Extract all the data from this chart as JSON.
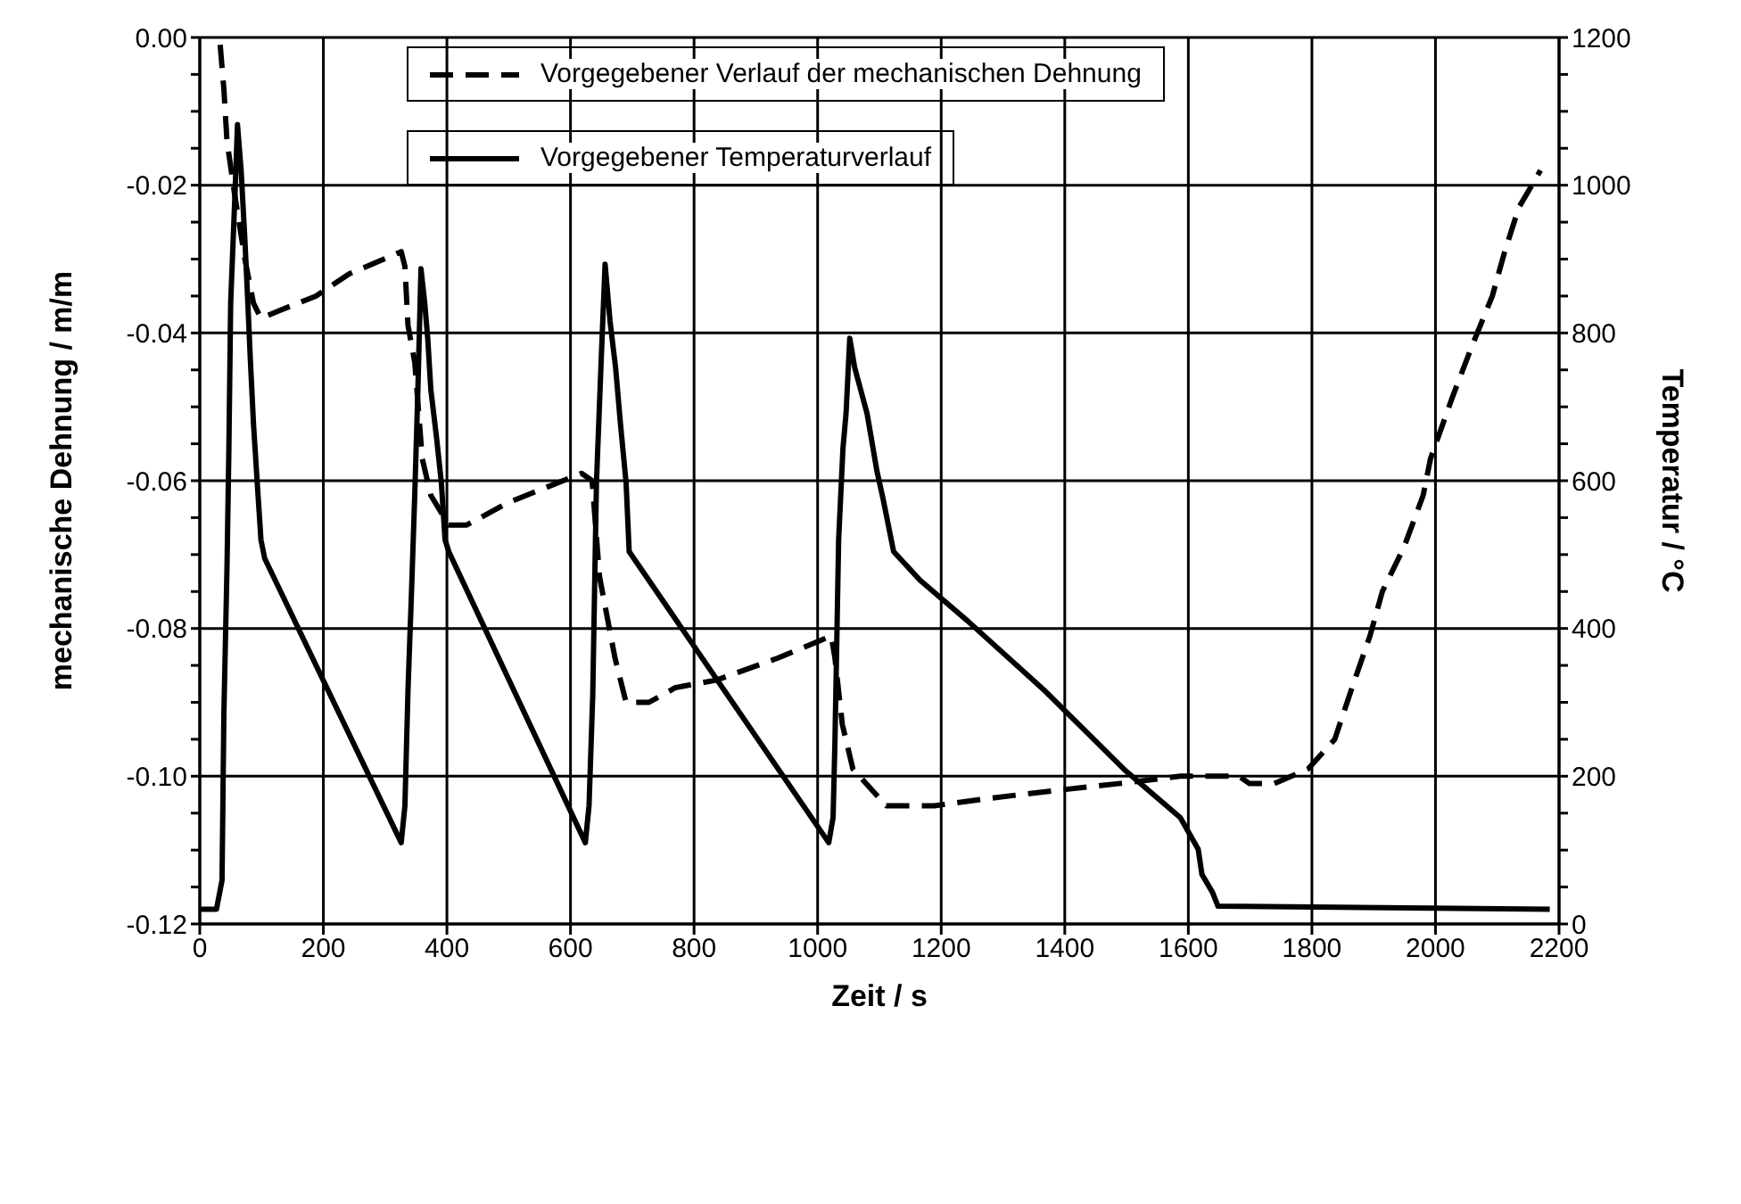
{
  "chart_data": {
    "type": "line",
    "xlabel": "Zeit  /  s",
    "ylabel": "mechanische Dehnung  /  m/m",
    "y2label": "Temperatur  /  °C",
    "xlim": [
      0,
      2200
    ],
    "xticks": [
      0,
      200,
      400,
      600,
      800,
      1000,
      1200,
      1400,
      1600,
      1800,
      2000,
      2200
    ],
    "ylim": [
      -0.12,
      0
    ],
    "yticks": [
      {
        "value": -0.12,
        "label": "-0.12"
      },
      {
        "value": -0.115,
        "label": null
      },
      {
        "value": -0.11,
        "label": null
      },
      {
        "value": -0.105,
        "label": null
      },
      {
        "value": -0.1,
        "label": "-0.10"
      },
      {
        "value": -0.095,
        "label": null
      },
      {
        "value": -0.09,
        "label": null
      },
      {
        "value": -0.085,
        "label": null
      },
      {
        "value": -0.08,
        "label": "-0.08"
      },
      {
        "value": -0.075,
        "label": null
      },
      {
        "value": -0.07,
        "label": null
      },
      {
        "value": -0.065,
        "label": null
      },
      {
        "value": -0.06,
        "label": "-0.06"
      },
      {
        "value": -0.055,
        "label": null
      },
      {
        "value": -0.05,
        "label": null
      },
      {
        "value": -0.045,
        "label": null
      },
      {
        "value": -0.04,
        "label": "-0.04"
      },
      {
        "value": -0.035,
        "label": null
      },
      {
        "value": -0.03,
        "label": null
      },
      {
        "value": -0.025,
        "label": null
      },
      {
        "value": -0.02,
        "label": "-0.02"
      },
      {
        "value": -0.015,
        "label": null
      },
      {
        "value": -0.01,
        "label": null
      },
      {
        "value": -0.005,
        "label": null
      },
      {
        "value": 0,
        "label": "0.00"
      }
    ],
    "y2lim": [
      0,
      1200
    ],
    "y2ticks": [
      0,
      {
        "value": 50,
        "label": null
      },
      {
        "value": 100,
        "label": null
      },
      {
        "value": 150,
        "label": null
      },
      200,
      {
        "value": 250,
        "label": null
      },
      {
        "value": 300,
        "label": null
      },
      {
        "value": 350,
        "label": null
      },
      400,
      {
        "value": 450,
        "label": null
      },
      {
        "value": 500,
        "label": null
      },
      {
        "value": 550,
        "label": null
      },
      600,
      {
        "value": 650,
        "label": null
      },
      {
        "value": 700,
        "label": null
      },
      {
        "value": 750,
        "label": null
      },
      800,
      {
        "value": 850,
        "label": null
      },
      {
        "value": 900,
        "label": null
      },
      {
        "value": 950,
        "label": null
      },
      1000,
      {
        "value": 1050,
        "label": null
      },
      {
        "value": 1100,
        "label": null
      },
      {
        "value": 1150,
        "label": null
      },
      1200
    ],
    "grid": true,
    "legend": "top",
    "marker": "none",
    "series": [
      {
        "name": "Vorgegebener Verlauf der mechanischen Dehnung",
        "color": "#000000",
        "line_style": "dashed",
        "axis": "y",
        "x": [
          33,
          39,
          44,
          56,
          73,
          87,
          99,
          128,
          188,
          242,
          326,
          332,
          337,
          348,
          360,
          374,
          403,
          432,
          498,
          618,
          635,
          647,
          672,
          690,
          727,
          770,
          836,
          936,
          1022,
          1028,
          1040,
          1057,
          1111,
          1189,
          1277,
          1378,
          1487,
          1587,
          1607,
          1682,
          1699,
          1739,
          1794,
          1837,
          1865,
          1894,
          1914,
          1949,
          1980,
          1992,
          2026,
          2058,
          2092,
          2112,
          2135,
          2170
        ],
        "values": [
          -0.001,
          -0.007,
          -0.014,
          -0.021,
          -0.03,
          -0.036,
          -0.038,
          -0.037,
          -0.035,
          -0.032,
          -0.029,
          -0.031,
          -0.039,
          -0.044,
          -0.057,
          -0.062,
          -0.066,
          -0.066,
          -0.063,
          -0.059,
          -0.06,
          -0.073,
          -0.084,
          -0.09,
          -0.09,
          -0.088,
          -0.087,
          -0.084,
          -0.081,
          -0.084,
          -0.093,
          -0.099,
          -0.104,
          -0.104,
          -0.103,
          -0.102,
          -0.101,
          -0.1,
          -0.1,
          -0.1,
          -0.101,
          -0.101,
          -0.099,
          -0.095,
          -0.088,
          -0.081,
          -0.075,
          -0.069,
          -0.062,
          -0.057,
          -0.049,
          -0.042,
          -0.035,
          -0.029,
          -0.023,
          -0.018
        ]
      },
      {
        "name": "Vorgegebener Temperaturverlauf",
        "color": "#000000",
        "line_style": "solid",
        "axis": "y2",
        "x": [
          0,
          27,
          36,
          39,
          44,
          47,
          50,
          57,
          61,
          67,
          73,
          77,
          82,
          87,
          93,
          99,
          105,
          326,
          332,
          337,
          343,
          348,
          353,
          358,
          364,
          369,
          374,
          383,
          391,
          397,
          403,
          624,
          630,
          636,
          642,
          650,
          656,
          664,
          673,
          681,
          690,
          695,
          1018,
          1025,
          1028,
          1034,
          1041,
          1046,
          1052,
          1060,
          1080,
          1096,
          1106,
          1123,
          1166,
          1243,
          1366,
          1499,
          1587,
          1616,
          1622,
          1639,
          1648,
          2185
        ],
        "values": [
          20,
          20,
          59,
          285,
          481,
          638,
          841,
          989,
          1082,
          1019,
          926,
          855,
          761,
          676,
          597,
          520,
          495,
          110,
          160,
          317,
          457,
          583,
          723,
          887,
          841,
          792,
          723,
          660,
          597,
          520,
          504,
          110,
          160,
          309,
          597,
          770,
          893,
          816,
          753,
          676,
          597,
          504,
          110,
          144,
          246,
          520,
          644,
          691,
          793,
          753,
          691,
          613,
          575,
          504,
          465,
          410,
          317,
          207,
          144,
          101,
          67,
          43,
          24,
          20
        ]
      }
    ]
  }
}
